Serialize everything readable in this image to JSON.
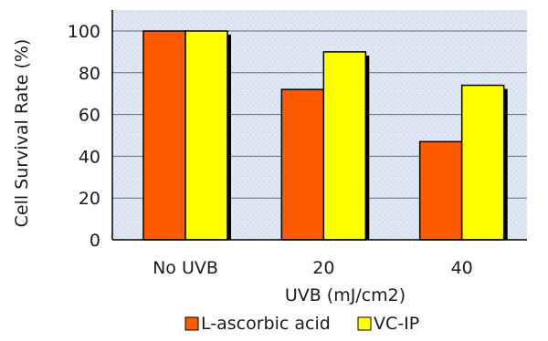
{
  "chart_data": {
    "type": "bar",
    "categories": [
      "No UVB",
      "20",
      "40"
    ],
    "series": [
      {
        "name": "L-ascorbic acid",
        "values": [
          100,
          72,
          47
        ],
        "color": "#ff5a00"
      },
      {
        "name": "VC-IP",
        "values": [
          100,
          90,
          74
        ],
        "color": "#ffff00"
      }
    ],
    "xlabel": "UVB (mJ/cm2)",
    "ylabel": "Cell Survival Rate (%)",
    "ylim": [
      0,
      100
    ],
    "yticks": [
      0,
      20,
      40,
      60,
      80,
      100
    ],
    "grid": true,
    "legend": "bottom",
    "plot_background": "#dfe6f4"
  }
}
